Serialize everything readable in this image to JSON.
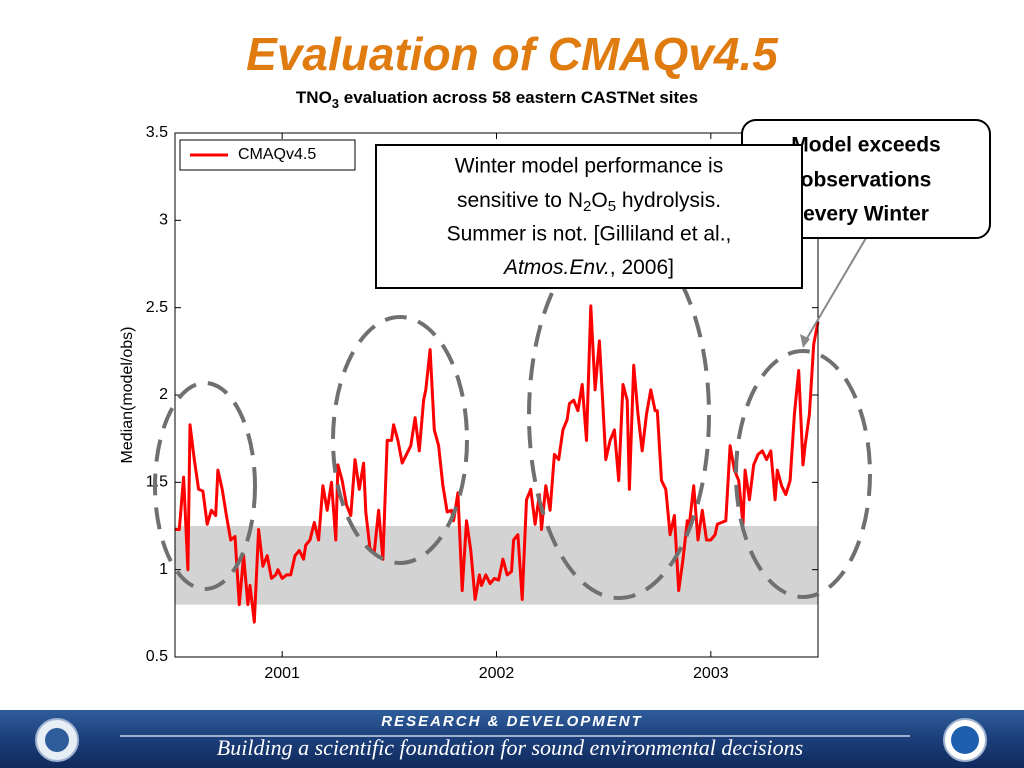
{
  "slide": {
    "title": "Evaluation of CMAQv4.5",
    "callout": [
      "Model exceeds",
      "observations",
      "every Winter"
    ],
    "note": {
      "line1": "Winter model performance is",
      "line2": [
        "sensitive to N",
        "2",
        "O",
        "5",
        " hydrolysis."
      ],
      "line3": "Summer is not. [Gilliland et al.,",
      "line4": [
        "Atmos.Env.",
        ", 2006]"
      ]
    },
    "footer": {
      "heading": "RESEARCH & DEVELOPMENT",
      "motto": "Building a scientific foundation for sound environmental decisions"
    }
  },
  "chart_data": {
    "type": "line",
    "title_parts": [
      "TNO",
      "3",
      " evaluation across 58 eastern CASTNet sites"
    ],
    "ylabel": "Median(model/obs)",
    "xlim": [
      2000.5,
      2003.5
    ],
    "xticks": [
      2001,
      2002,
      2003
    ],
    "ylim": [
      0.5,
      3.5
    ],
    "yticks": [
      0.5,
      1,
      1.5,
      2,
      2.5,
      3,
      3.5
    ],
    "shaded_range": [
      0.8,
      1.25
    ],
    "shaded_color": "#d3d3d3",
    "legend": "upper left",
    "x": [
      2000.5,
      2000.52,
      2000.54,
      2000.56,
      2000.57,
      2000.59,
      2000.61,
      2000.63,
      2000.65,
      2000.67,
      2000.69,
      2000.7,
      2000.72,
      2000.74,
      2000.76,
      2000.78,
      2000.8,
      2000.82,
      2000.84,
      2000.85,
      2000.87,
      2000.89,
      2000.91,
      2000.93,
      2000.95,
      2000.97,
      2000.98,
      2001.0,
      2001.02,
      2001.04,
      2001.06,
      2001.08,
      2001.1,
      2001.11,
      2001.13,
      2001.15,
      2001.17,
      2001.19,
      2001.21,
      2001.23,
      2001.25,
      2001.26,
      2001.28,
      2001.3,
      2001.32,
      2001.34,
      2001.36,
      2001.38,
      2001.39,
      2001.41,
      2001.43,
      2001.45,
      2001.47,
      2001.49,
      2001.51,
      2001.52,
      2001.54,
      2001.56,
      2001.58,
      2001.6,
      2001.62,
      2001.64,
      2001.66,
      2001.67,
      2001.69,
      2001.71,
      2001.73,
      2001.75,
      2001.77,
      2001.79,
      2001.8,
      2001.82,
      2001.84,
      2001.86,
      2001.88,
      2001.9,
      2001.92,
      2001.93,
      2001.95,
      2001.97,
      2001.99,
      2002.01,
      2002.03,
      2002.05,
      2002.07,
      2002.08,
      2002.1,
      2002.12,
      2002.14,
      2002.16,
      2002.18,
      2002.2,
      2002.21,
      2002.23,
      2002.25,
      2002.27,
      2002.29,
      2002.31,
      2002.33,
      2002.34,
      2002.36,
      2002.38,
      2002.4,
      2002.42,
      2002.44,
      2002.46,
      2002.48,
      2002.49,
      2002.51,
      2002.53,
      2002.55,
      2002.57,
      2002.59,
      2002.61,
      2002.62,
      2002.64,
      2002.66,
      2002.68,
      2002.7,
      2002.72,
      2002.74,
      2002.75,
      2002.77,
      2002.79,
      2002.81,
      2002.83,
      2002.85,
      2002.87,
      2002.89,
      2002.9,
      2002.92,
      2002.94,
      2002.96,
      2002.98,
      2003.0,
      2003.02,
      2003.03,
      2003.05,
      2003.07,
      2003.09,
      2003.11,
      2003.13,
      2003.15,
      2003.16,
      2003.18,
      2003.2,
      2003.22,
      2003.24,
      2003.26,
      2003.28,
      2003.3,
      2003.31,
      2003.33,
      2003.35,
      2003.37,
      2003.39,
      2003.41,
      2003.43,
      2003.44,
      2003.46,
      2003.48,
      2003.5
    ],
    "series": [
      {
        "name": "CMAQv4.5",
        "color": "#ff0000",
        "values": [
          1.23,
          1.23,
          1.53,
          1.0,
          1.83,
          1.63,
          1.46,
          1.45,
          1.26,
          1.34,
          1.31,
          1.57,
          1.46,
          1.31,
          1.17,
          1.19,
          0.8,
          1.08,
          0.8,
          0.91,
          0.7,
          1.23,
          1.02,
          1.08,
          0.95,
          0.97,
          1.0,
          0.95,
          0.97,
          0.97,
          1.08,
          1.11,
          1.06,
          1.14,
          1.17,
          1.27,
          1.17,
          1.48,
          1.34,
          1.5,
          1.17,
          1.6,
          1.51,
          1.37,
          1.31,
          1.63,
          1.46,
          1.61,
          1.33,
          1.12,
          1.1,
          1.34,
          1.06,
          1.74,
          1.74,
          1.83,
          1.74,
          1.61,
          1.66,
          1.71,
          1.87,
          1.68,
          1.97,
          2.03,
          2.26,
          1.8,
          1.71,
          1.48,
          1.33,
          1.34,
          1.28,
          1.44,
          0.88,
          1.28,
          1.11,
          0.83,
          0.97,
          0.91,
          0.97,
          0.92,
          0.95,
          0.94,
          1.06,
          0.97,
          0.99,
          1.17,
          1.2,
          0.83,
          1.4,
          1.46,
          1.26,
          1.43,
          1.23,
          1.48,
          1.34,
          1.66,
          1.63,
          1.8,
          1.86,
          1.95,
          1.97,
          1.91,
          2.06,
          1.74,
          2.51,
          2.03,
          2.31,
          2.09,
          1.63,
          1.74,
          1.8,
          1.51,
          2.06,
          1.97,
          1.46,
          2.17,
          1.89,
          1.68,
          1.89,
          2.03,
          1.91,
          1.91,
          1.51,
          1.46,
          1.2,
          1.31,
          0.88,
          1.06,
          1.28,
          1.26,
          1.48,
          1.17,
          1.34,
          1.17,
          1.17,
          1.2,
          1.26,
          1.27,
          1.28,
          1.71,
          1.57,
          1.51,
          1.26,
          1.57,
          1.4,
          1.6,
          1.66,
          1.68,
          1.63,
          1.68,
          1.4,
          1.57,
          1.48,
          1.43,
          1.51,
          1.89,
          2.14,
          1.6,
          1.71,
          1.89,
          2.29,
          2.42
        ]
      }
    ]
  }
}
